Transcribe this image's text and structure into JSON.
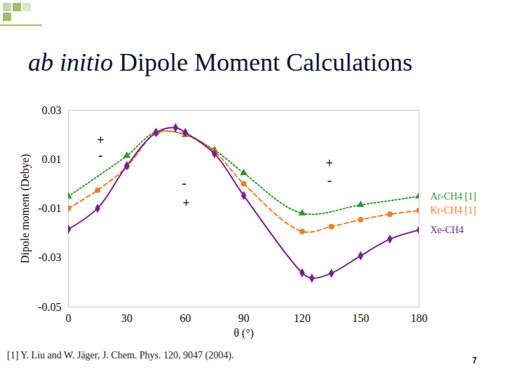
{
  "chart_data": {
    "type": "line",
    "title": "ab initio Dipole Moment Calculations",
    "x_label": "θ (°)",
    "y_label": "Dipole moment (Debye)",
    "xlim": [
      0,
      180
    ],
    "xticks": [
      0,
      30,
      60,
      90,
      120,
      150,
      180
    ],
    "ylim": [
      -0.05,
      0.03
    ],
    "yticks": [
      -0.05,
      -0.03,
      -0.01,
      0.01,
      0.03
    ],
    "grid": false,
    "legend": "right",
    "series": [
      {
        "name": "Ar-CH4 [1]",
        "color": "#2e9a2e",
        "marker": "triangle",
        "line_style": "dotted",
        "x": [
          0,
          30,
          45,
          60,
          75,
          90,
          120,
          150,
          180
        ],
        "values": [
          -0.005,
          0.0115,
          0.0212,
          0.02,
          0.0138,
          0.0045,
          -0.0119,
          -0.0085,
          -0.005
        ]
      },
      {
        "name": "Kr-CH4 [1]",
        "color": "#f07f2a",
        "marker": "circle",
        "line_style": "dashed",
        "x": [
          0,
          15,
          30,
          45,
          60,
          75,
          90,
          120,
          135,
          150,
          165,
          180
        ],
        "values": [
          -0.0099,
          -0.0025,
          0.007,
          0.0206,
          0.0203,
          0.0132,
          0.0001,
          -0.0193,
          -0.0173,
          -0.0145,
          -0.0123,
          -0.0108
        ]
      },
      {
        "name": "Xe-CH4",
        "color": "#7a1f8f",
        "marker": "diamond",
        "line_style": "solid",
        "x": [
          0,
          15,
          30,
          45,
          55,
          60,
          75,
          90,
          120,
          125,
          135,
          150,
          165,
          180
        ],
        "values": [
          -0.0184,
          -0.0099,
          0.0075,
          0.0209,
          0.0229,
          0.0209,
          0.0123,
          -0.0047,
          -0.0361,
          -0.0383,
          -0.0363,
          -0.0292,
          -0.0224,
          -0.0187
        ]
      }
    ],
    "annotations": [
      {
        "text": "+",
        "x": 16.5,
        "y": 0.0178
      },
      {
        "text": "-",
        "x": 16.5,
        "y": 0.0115
      },
      {
        "text": "-",
        "x": 59.4,
        "y": 0.0001
      },
      {
        "text": "+",
        "x": 60.4,
        "y": -0.0079
      },
      {
        "text": "+",
        "x": 134,
        "y": 0.0084
      },
      {
        "text": "-",
        "x": 134,
        "y": 0.0012
      }
    ],
    "footnote": "[1] Y. Liu and W. Jäger, J. Chem. Phys. 120, 9047 (2004).",
    "page_number": 7
  }
}
